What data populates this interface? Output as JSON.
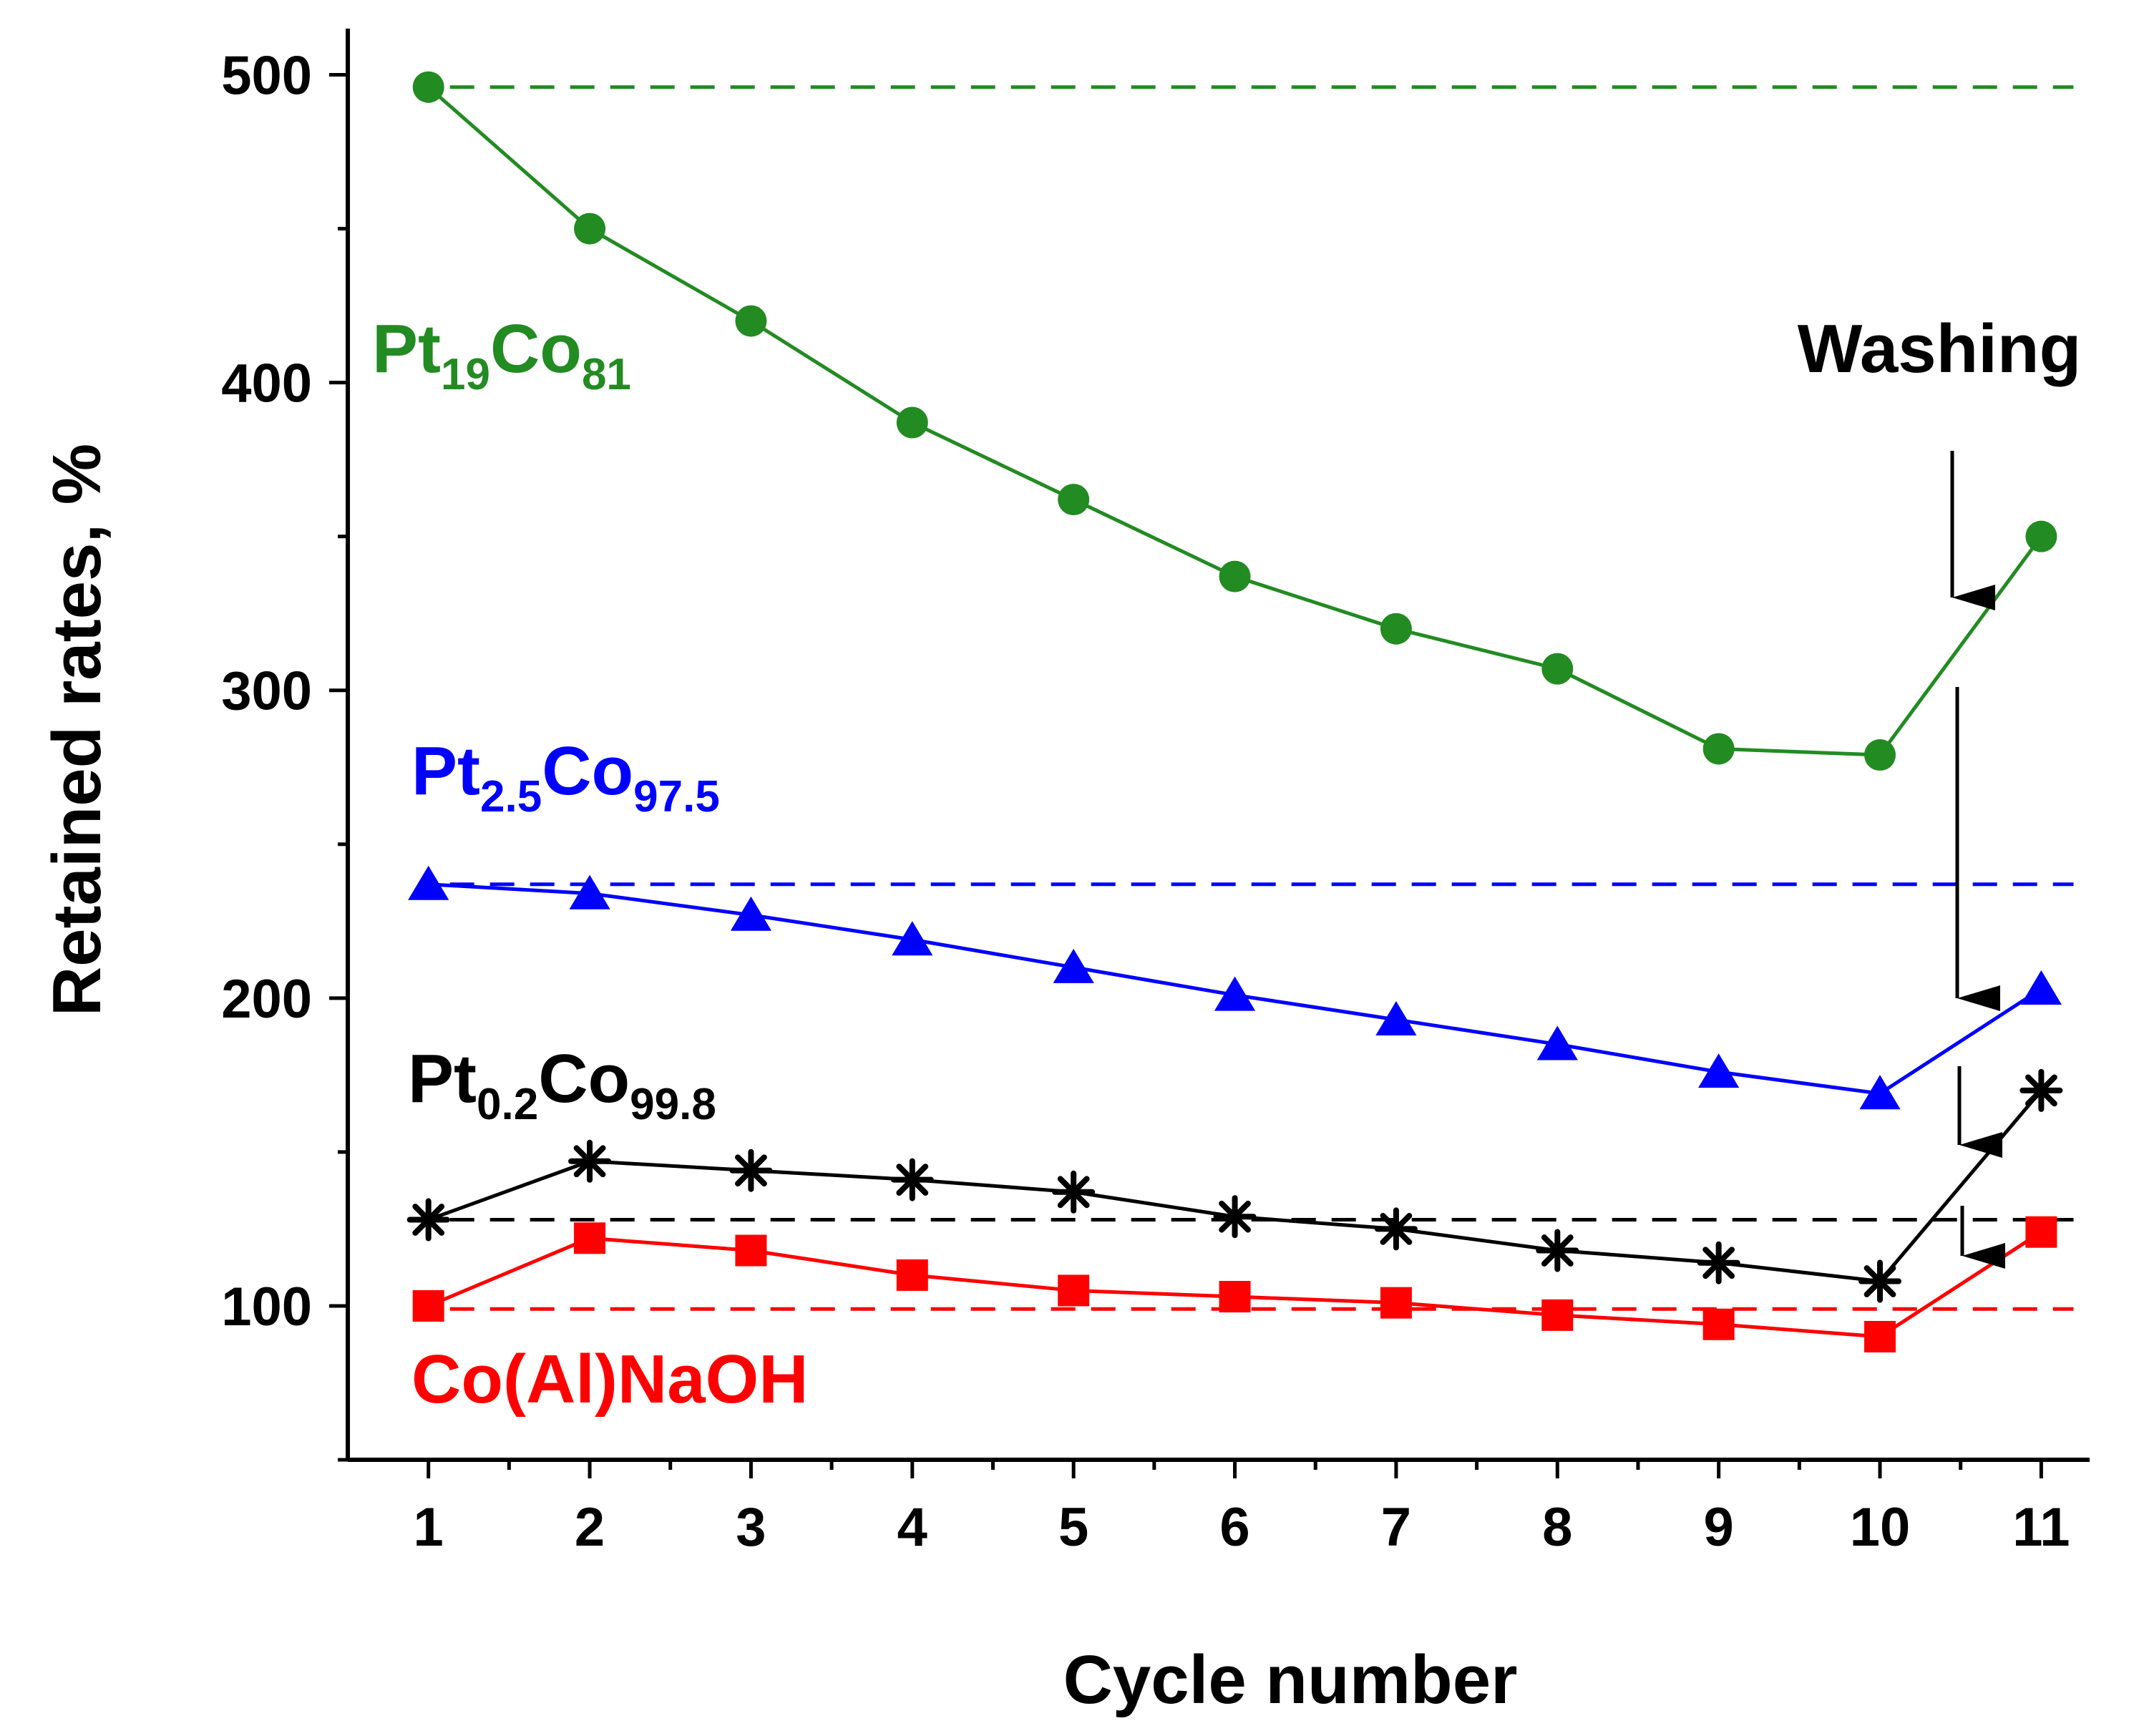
{
  "chart_data": {
    "type": "line",
    "xlabel": "Cycle number",
    "ylabel": "Retained rates, %",
    "xlim": [
      0.5,
      11.3
    ],
    "ylim": [
      50,
      515
    ],
    "xticks": [
      "1",
      "2",
      "3",
      "4",
      "5",
      "6",
      "7",
      "8",
      "9",
      "10",
      "11"
    ],
    "yticks": [
      "100",
      "200",
      "300",
      "400",
      "500"
    ],
    "x": [
      1,
      2,
      3,
      4,
      5,
      6,
      7,
      8,
      9,
      10,
      11
    ],
    "grid": false,
    "legend": "none",
    "series": [
      {
        "name_parts": [
          "Pt",
          "19",
          "Co",
          "81"
        ],
        "color": "#228B22",
        "marker": "circle",
        "values": [
          496,
          450,
          420,
          387,
          362,
          337,
          320,
          307,
          281,
          279,
          350
        ],
        "reference": 496
      },
      {
        "name_parts": [
          "Pt",
          "2.5",
          "Co",
          "97.5"
        ],
        "color": "#0000FF",
        "marker": "triangle",
        "values": [
          237,
          234,
          227,
          219,
          210,
          201,
          193,
          185,
          176,
          169,
          203
        ],
        "reference": 237
      },
      {
        "name_parts": [
          "Pt",
          "0.2",
          "Co",
          "99.8"
        ],
        "color": "#000000",
        "marker": "asterisk",
        "values": [
          128,
          147,
          144,
          141,
          137,
          129,
          125,
          118,
          114,
          108,
          170
        ],
        "reference": 128
      },
      {
        "name_parts": [
          "Co(Al)NaOH"
        ],
        "color": "#FF0000",
        "marker": "square",
        "values": [
          100,
          122,
          118,
          110,
          105,
          103,
          101,
          97,
          94,
          90,
          124
        ],
        "reference": 99
      }
    ],
    "annotations": [
      {
        "text": "Washing"
      }
    ]
  }
}
